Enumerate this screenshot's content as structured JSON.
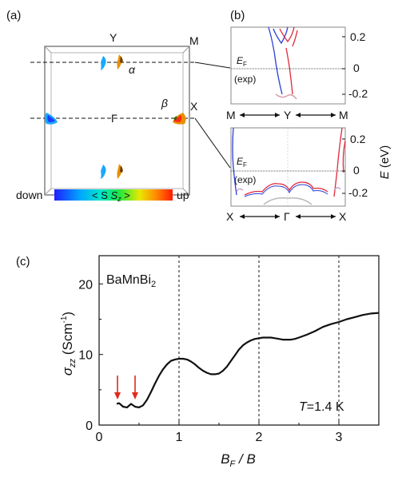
{
  "panel_a": {
    "label": "(a)",
    "points": {
      "Y": "Y",
      "M": "M",
      "Gamma": "Γ",
      "X": "X"
    },
    "pockets": {
      "alpha": "α",
      "beta": "β"
    },
    "colorbar": {
      "low": "down",
      "high": "up",
      "quantity": "< S",
      "quantity_sub": "z",
      "quantity_end": " >"
    },
    "colors": {
      "spin_down": "#1f3cff",
      "spin_mid": "#18e85a",
      "spin_up": "#ff2a1a"
    }
  },
  "panel_b": {
    "label": "(b)",
    "top": {
      "ticks": [
        "0.2",
        "0",
        "-0.2"
      ],
      "ef_label": "E",
      "ef_sub": "F",
      "exp": "(exp)",
      "path": {
        "left": "M",
        "mid": "Y",
        "right": "M"
      }
    },
    "bottom": {
      "ticks": [
        "0.2",
        "0",
        "-0.2"
      ],
      "ef_label": "E",
      "ef_sub": "F",
      "exp": "(exp)",
      "path": {
        "left": "X",
        "mid": "Γ",
        "right": "X"
      }
    },
    "energy_axis": {
      "symbol": "E",
      "unit": " (eV)"
    },
    "colors": {
      "band_red": "#e0283c",
      "band_blue": "#2a3fd6"
    }
  },
  "panel_c": {
    "label": "(c)",
    "compound": "BaMnBi",
    "compound_sub": "2",
    "temperature_symbol": "T",
    "temperature_value": "=1.4 K",
    "ylabel": {
      "symbol": "σ",
      "sub": "zz",
      "unit_open": " (Scm",
      "unit_exp": "-1",
      "unit_close": ")"
    },
    "xlabel": {
      "a": "B",
      "a_sub": "F",
      "b": " / B"
    },
    "arrow_color": "#e02a1a"
  },
  "chart_data": {
    "type": "line",
    "xlim": [
      0,
      3.5
    ],
    "ylim": [
      0,
      24
    ],
    "xticks": [
      "0",
      "1",
      "2",
      "3"
    ],
    "yticks": [
      "0",
      "10",
      "20"
    ],
    "series": [
      {
        "x": [
          0.22,
          0.25,
          0.3,
          0.35,
          0.4,
          0.45,
          0.5,
          0.55,
          0.6,
          0.65,
          0.7,
          0.75,
          0.8,
          0.85,
          0.9,
          0.95,
          1.0,
          1.05,
          1.1,
          1.15,
          1.2,
          1.25,
          1.3,
          1.35,
          1.4,
          1.45,
          1.5,
          1.55,
          1.6,
          1.65,
          1.7,
          1.75,
          1.8,
          1.85,
          1.9,
          1.95,
          2.0,
          2.05,
          2.1,
          2.15,
          2.2,
          2.25,
          2.3,
          2.35,
          2.4,
          2.45,
          2.5,
          2.6,
          2.7,
          2.8,
          2.9,
          3.0,
          3.1,
          3.2,
          3.3,
          3.4,
          3.5
        ],
        "y": [
          3.0,
          3.1,
          2.6,
          2.5,
          3.0,
          2.6,
          2.5,
          2.8,
          3.6,
          4.7,
          5.9,
          7.0,
          7.9,
          8.6,
          9.1,
          9.3,
          9.4,
          9.4,
          9.3,
          9.0,
          8.6,
          8.1,
          7.7,
          7.4,
          7.2,
          7.2,
          7.3,
          7.7,
          8.3,
          9.1,
          9.9,
          10.7,
          11.3,
          11.7,
          12.0,
          12.2,
          12.3,
          12.4,
          12.4,
          12.4,
          12.3,
          12.2,
          12.1,
          12.1,
          12.1,
          12.2,
          12.4,
          12.8,
          13.3,
          13.9,
          14.3,
          14.6,
          15.0,
          15.3,
          15.6,
          15.8,
          15.9
        ]
      }
    ],
    "vlines_x": [
      1,
      2,
      3
    ],
    "arrows_x": [
      0.23,
      0.45
    ]
  }
}
